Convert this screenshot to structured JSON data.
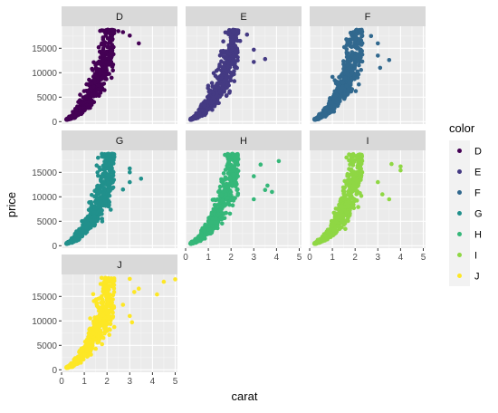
{
  "chart_data": {
    "type": "scatter",
    "facet_by": "color",
    "xlabel": "carat",
    "ylabel": "price",
    "xlim": [
      0,
      5.1
    ],
    "ylim": [
      -500,
      19500
    ],
    "x_ticks": [
      0,
      1,
      2,
      3,
      4,
      5
    ],
    "y_ticks": [
      0,
      5000,
      10000,
      15000
    ],
    "x_tick_labels": [
      "0",
      "1",
      "2",
      "3",
      "4",
      "5"
    ],
    "y_tick_labels": [
      "0",
      "5000",
      "10000",
      "15000"
    ],
    "grid": true,
    "legend": {
      "title": "color",
      "position": "right",
      "entries": [
        "D",
        "E",
        "F",
        "G",
        "H",
        "I",
        "J"
      ],
      "colors": [
        "#440154",
        "#443A83",
        "#31688E",
        "#21908C",
        "#35B779",
        "#8FD744",
        "#FDE725"
      ]
    },
    "panels": [
      {
        "label": "D",
        "color": "#440154",
        "outliers": [
          [
            2.5,
            18500
          ],
          [
            2.7,
            18300
          ],
          [
            3.0,
            17600
          ],
          [
            3.4,
            16000
          ],
          [
            2.2,
            17000
          ]
        ]
      },
      {
        "label": "E",
        "color": "#443A83",
        "outliers": [
          [
            2.7,
            17800
          ],
          [
            3.0,
            14700
          ],
          [
            3.5,
            12800
          ],
          [
            2.4,
            16500
          ],
          [
            3.0,
            12200
          ]
        ]
      },
      {
        "label": "F",
        "color": "#31688E",
        "outliers": [
          [
            3.0,
            16000
          ],
          [
            3.0,
            13500
          ],
          [
            3.1,
            11000
          ],
          [
            3.5,
            12600
          ],
          [
            2.7,
            17500
          ]
        ]
      },
      {
        "label": "G",
        "color": "#21908C",
        "outliers": [
          [
            3.0,
            15800
          ],
          [
            3.0,
            13000
          ],
          [
            3.5,
            13700
          ],
          [
            3.0,
            15000
          ],
          [
            2.7,
            11500
          ]
        ]
      },
      {
        "label": "H",
        "color": "#35B779",
        "outliers": [
          [
            4.1,
            17300
          ],
          [
            3.3,
            16600
          ],
          [
            3.5,
            11400
          ],
          [
            3.6,
            12300
          ],
          [
            3.0,
            9500
          ],
          [
            3.0,
            14200
          ],
          [
            3.8,
            11000
          ]
        ]
      },
      {
        "label": "I",
        "color": "#8FD744",
        "outliers": [
          [
            4.0,
            16200
          ],
          [
            3.6,
            16700
          ],
          [
            3.0,
            13000
          ],
          [
            3.2,
            10500
          ],
          [
            4.0,
            15400
          ],
          [
            3.5,
            9500
          ]
        ]
      },
      {
        "label": "J",
        "color": "#FDE725",
        "outliers": [
          [
            5.0,
            18500
          ],
          [
            4.5,
            18000
          ],
          [
            4.2,
            15400
          ],
          [
            3.4,
            16600
          ],
          [
            3.0,
            18600
          ],
          [
            3.2,
            15900
          ],
          [
            3.0,
            11000
          ],
          [
            3.1,
            9700
          ],
          [
            2.7,
            13300
          ]
        ]
      }
    ]
  }
}
